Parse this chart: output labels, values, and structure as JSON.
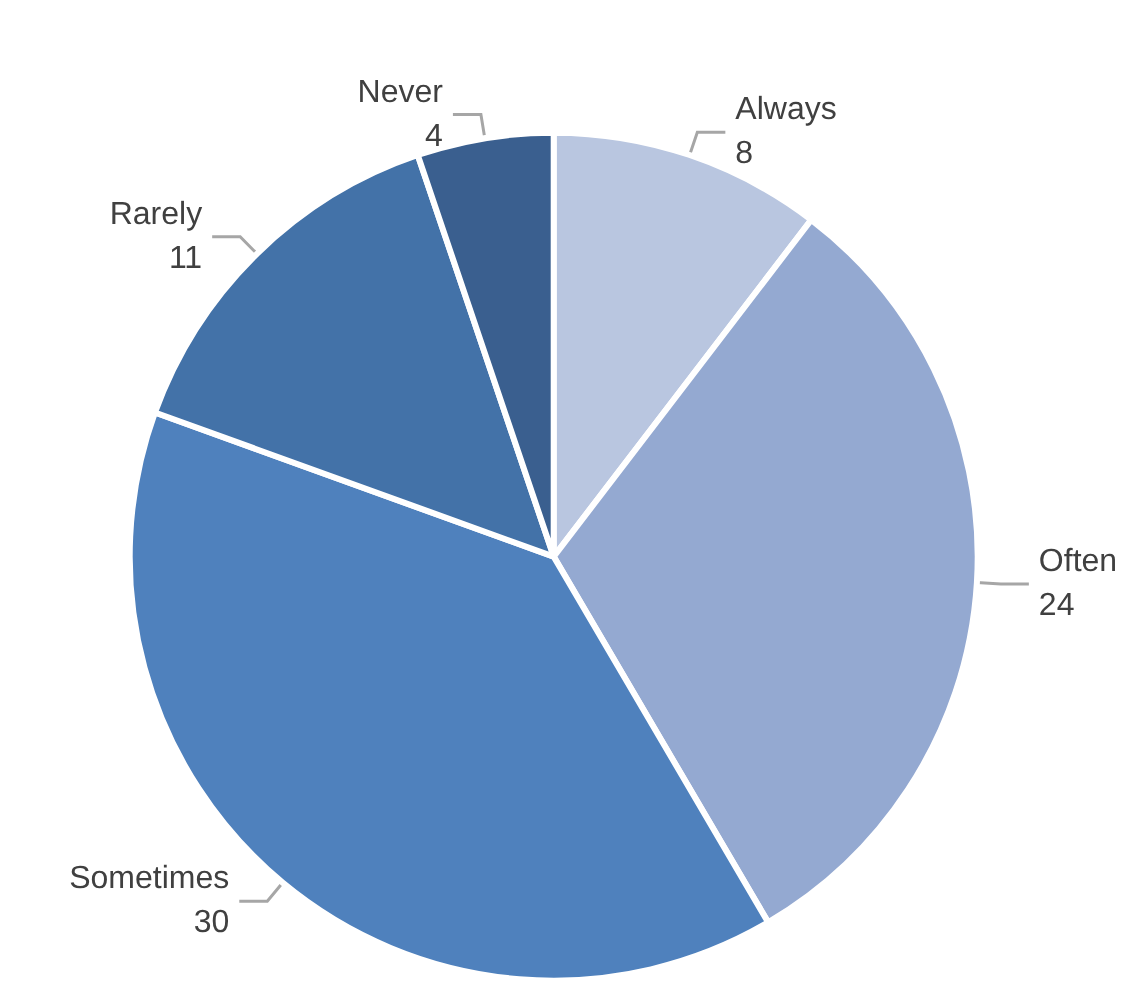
{
  "chart_data": {
    "type": "pie",
    "categories": [
      "Always",
      "Often",
      "Sometimes",
      "Rarely",
      "Never"
    ],
    "values": [
      8,
      24,
      30,
      11,
      4
    ],
    "colors": [
      "#b9c6e0",
      "#94a9d1",
      "#4f81bd",
      "#4372a8",
      "#3a5f8f"
    ],
    "data_labels": true,
    "legend": false
  }
}
